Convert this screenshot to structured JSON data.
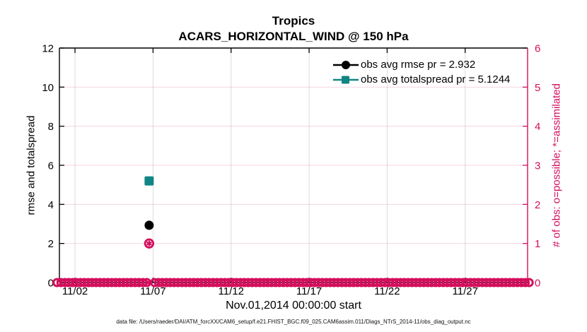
{
  "figure": {
    "title": "Tropics",
    "subtitle": "ACARS_HORIZONTAL_WIND @ 150 hPa",
    "caption": "data file: /Users/raeder/DAI/ATM_forcXX/CAM6_setup/f.e21.FHIST_BGC.f09_025.CAM6assim.011/Diags_NTrS_2014-11/obs_diag_output.nc"
  },
  "chart_data": {
    "type": "line",
    "title": "Tropics",
    "subtitle": "ACARS_HORIZONTAL_WIND @ 150 hPa",
    "grid": true,
    "x_axis": {
      "label": "Nov.01,2014 00:00:00 start",
      "min_day": 0,
      "max_day": 30,
      "tick_days": [
        1,
        6,
        11,
        16,
        21,
        26
      ],
      "tick_labels": [
        "11/02",
        "11/07",
        "11/12",
        "11/17",
        "11/22",
        "11/27"
      ]
    },
    "left_axis": {
      "label": "rmse and totalspread",
      "min": 0,
      "max": 12,
      "ticks": [
        0,
        2,
        4,
        6,
        8,
        10,
        12
      ],
      "color": "#000000"
    },
    "right_axis": {
      "label": "# of obs: o=possible; *=assimilated",
      "min": 0,
      "max": 6,
      "ticks": [
        0,
        1,
        2,
        3,
        4,
        5,
        6
      ],
      "color": "#d40f5c"
    },
    "legend": {
      "position": "top-right",
      "box": false,
      "entries": [
        "obs avg rmse pr = 2.932",
        "obs avg totalspread pr = 5.1244"
      ]
    },
    "series": [
      {
        "name": "obs avg rmse pr = 2.932",
        "axis": "left",
        "marker": "circle",
        "color": "#000000",
        "points": [
          {
            "day": 5.75,
            "value": 2.93
          }
        ]
      },
      {
        "name": "obs avg totalspread pr = 5.1244",
        "axis": "left",
        "marker": "square",
        "color": "#118585",
        "points": [
          {
            "day": 5.75,
            "value": 5.2
          }
        ]
      },
      {
        "name": "# of obs possible / assimilated",
        "axis": "right",
        "marker": "circle-asterisk",
        "color": "#d40f5c",
        "points": [
          {
            "day": 5.75,
            "value": 1
          }
        ],
        "zero_row": {
          "start_day": -0.15,
          "end_day": 30.3,
          "step_day": 0.25,
          "gap_days": [
            5.75
          ]
        }
      }
    ]
  }
}
